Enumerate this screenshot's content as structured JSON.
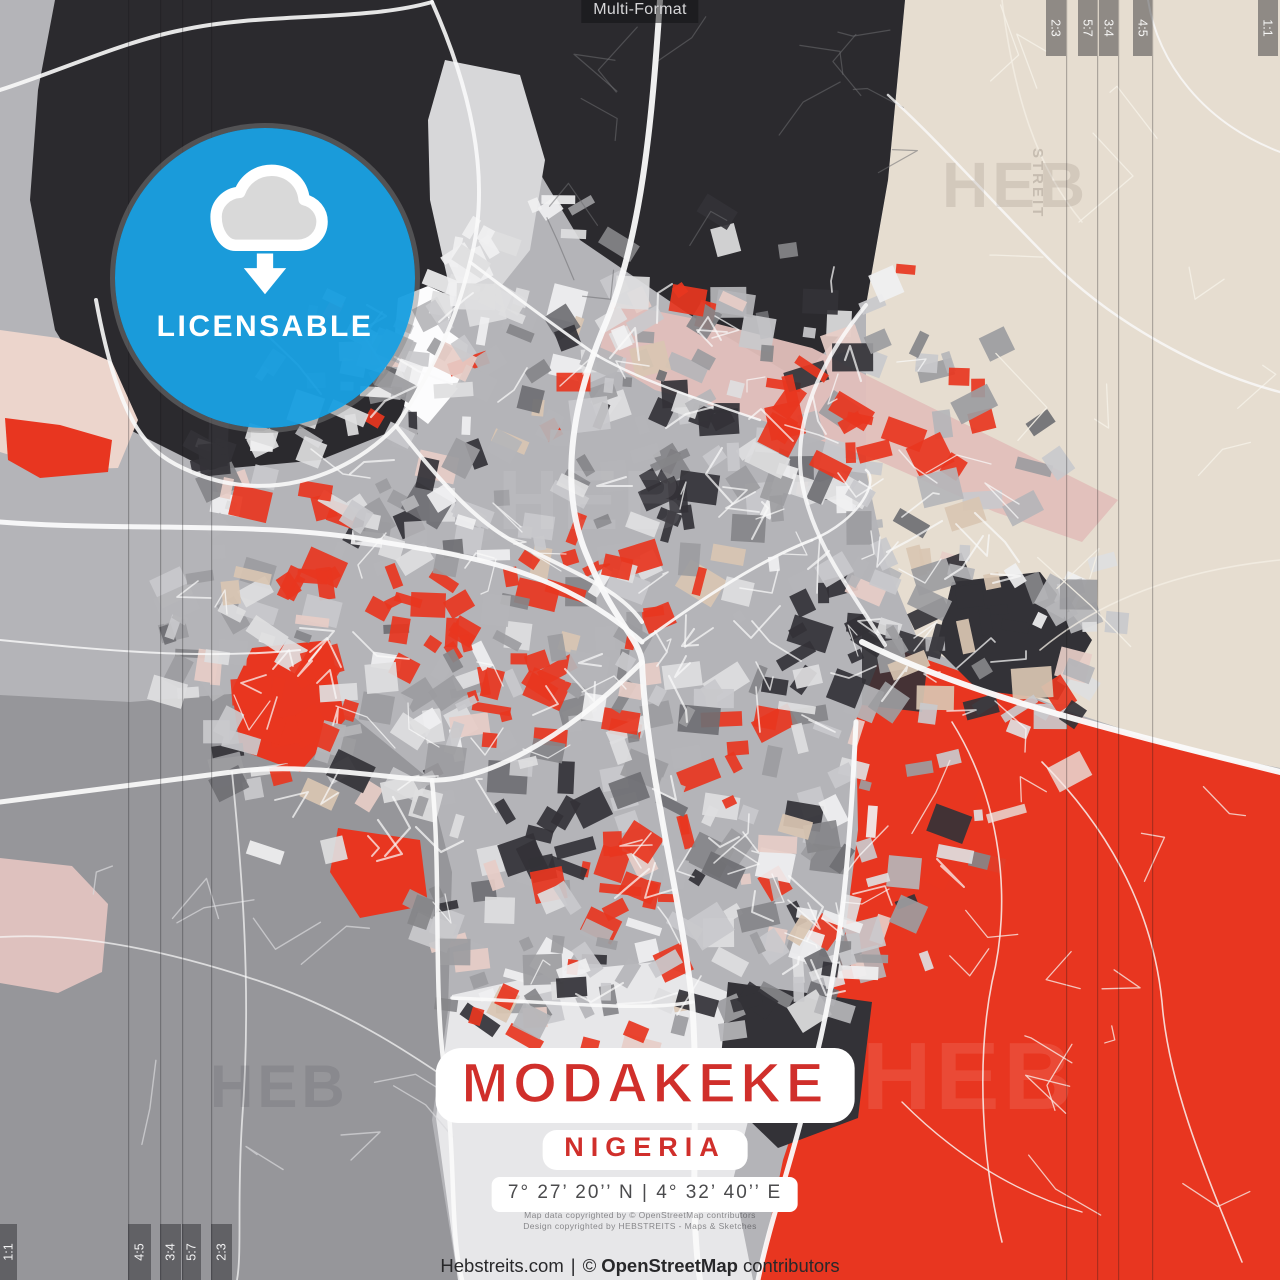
{
  "header": {
    "format_label": "Multi-Format"
  },
  "badge": {
    "label": "LICENSABLE",
    "color": "#1a9fe0",
    "icon": "cloud-download-icon"
  },
  "title_block": {
    "city": "MODAKEKE",
    "country": "NIGERIA",
    "coordinates": "7° 27’ 20’’ N | 4° 32’ 40’’ E",
    "accent_color": "#d02f2b"
  },
  "ratio_marks": {
    "top_right": [
      "2:3",
      "5:7",
      "3:4",
      "4:5"
    ],
    "right_edge": "1:1",
    "bottom_left": [
      "4:5",
      "3:4",
      "5:7",
      "2:3"
    ],
    "left_edge": "1:1"
  },
  "watermark": {
    "text": "HEB",
    "vertical_text": "STREIT"
  },
  "footer": {
    "fine_print_line1": "Map data copyrighted by © OpenStreetMap contributors",
    "fine_print_line2": "Design copyrighted by HEBSTREITS - Maps & Sketches",
    "site": "Hebstreits.com",
    "separator": "|",
    "copyright": "©",
    "osm": "OpenStreetMap",
    "contributors": "contributors"
  },
  "map_palette": {
    "base": "#b4b4b8",
    "dark": "#2b2a2e",
    "beige": "#e6ddd0",
    "red": "#e83620",
    "pink_band": "#e2bfbb",
    "pink_light": "#ecd5cc",
    "pink_deep": "#dec1be",
    "gray_region": "#96969a",
    "light_region": "#e7e7e9",
    "white": "#fcfcfd",
    "road": "#fafafa",
    "road_dark": "#6d6d71",
    "road_beige": "#f4efe6",
    "road_red": "#f8e8e4",
    "road_gray": "#d9d9db",
    "guide_line": "rgba(18,18,20,0.28)",
    "block_colors": [
      "#f0f0f1",
      "#dededf",
      "#c9c9cc",
      "#b5b5b9",
      "#9c9ca0",
      "#858589",
      "#6f6f73",
      "#333237",
      "#e83620",
      "#d9c6b2",
      "#e7cdc7"
    ]
  }
}
